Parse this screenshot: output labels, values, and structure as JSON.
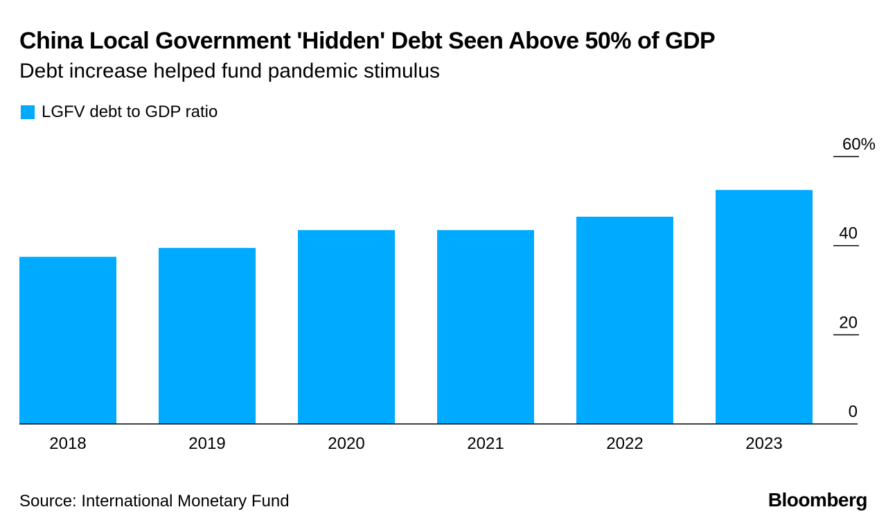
{
  "header": {
    "title": "China Local Government 'Hidden' Debt Seen Above 50% of GDP",
    "subtitle": "Debt increase helped fund pandemic stimulus"
  },
  "legend": {
    "label": "LGFV debt to GDP ratio"
  },
  "footer": {
    "source": "Source: International Monetary Fund",
    "brand": "Bloomberg"
  },
  "colors": {
    "bar": "#00aaff",
    "axis": "#000000",
    "text": "#000000"
  },
  "chart_data": {
    "type": "bar",
    "title": "China Local Government 'Hidden' Debt Seen Above 50% of GDP",
    "subtitle": "Debt increase helped fund pandemic stimulus",
    "xlabel": "",
    "ylabel": "",
    "categories": [
      "2018",
      "2019",
      "2020",
      "2021",
      "2022",
      "2023"
    ],
    "series": [
      {
        "name": "LGFV debt to GDP ratio",
        "values": [
          37.5,
          39.5,
          43.5,
          43.5,
          46.5,
          52.5
        ]
      }
    ],
    "ylim": [
      0,
      60
    ],
    "yticks": [
      0,
      20,
      40,
      60
    ],
    "ytick_labels": [
      "0",
      "20",
      "40",
      "60%"
    ],
    "y_axis_side": "right",
    "grid": false,
    "legend_position": "top-left"
  }
}
